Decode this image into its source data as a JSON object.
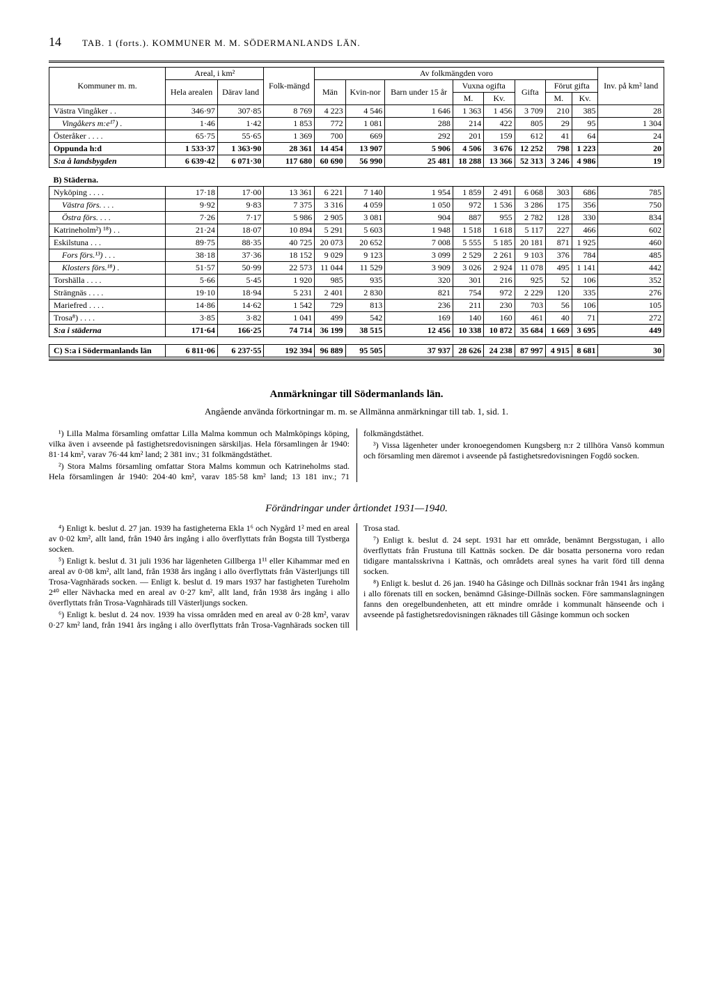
{
  "header": {
    "page_num": "14",
    "tab_title": "TAB. 1 (forts.). KOMMUNER M. M. SÖDERMANLANDS LÄN."
  },
  "table": {
    "col_headers": {
      "kommuner": "Kommuner m. m.",
      "areal": "Areal, i km²",
      "hela": "Hela arealen",
      "darav": "Därav land",
      "folk": "Folk-mängd",
      "av_folk": "Av folkmängden voro",
      "inv": "Inv. på km² land",
      "man": "Män",
      "kvin": "Kvin-nor",
      "barn": "Barn under 15 år",
      "vuxna": "Vuxna ogifta",
      "m": "M.",
      "kv": "Kv.",
      "gifta": "Gifta",
      "forut": "Förut gifta"
    },
    "rows": [
      {
        "label": "Västra Vingåker . .",
        "cls": "",
        "v": [
          "346·97",
          "307·85",
          "8 769",
          "4 223",
          "4 546",
          "1 646",
          "1 363",
          "1 456",
          "3 709",
          "210",
          "385",
          "28"
        ]
      },
      {
        "label": "Vingåkers m:e¹⁷) .",
        "cls": "sublabel",
        "v": [
          "1·46",
          "1·42",
          "1 853",
          "772",
          "1 081",
          "288",
          "214",
          "422",
          "805",
          "29",
          "95",
          "1 304"
        ]
      },
      {
        "label": "Österåker . . . .",
        "cls": "",
        "v": [
          "65·75",
          "55·65",
          "1 369",
          "700",
          "669",
          "292",
          "201",
          "159",
          "612",
          "41",
          "64",
          "24"
        ]
      },
      {
        "label": "Oppunda h:d",
        "cls": "bold",
        "v": [
          "1 533·37",
          "1 363·90",
          "28 361",
          "14 454",
          "13 907",
          "5 906",
          "4 506",
          "3 676",
          "12 252",
          "798",
          "1 223",
          "20"
        ]
      },
      {
        "label": "S:a å landsbygden",
        "cls": "bold italic",
        "v": [
          "6 639·42",
          "6 071·30",
          "117 680",
          "60 690",
          "56 990",
          "25 481",
          "18 288",
          "13 366",
          "52 313",
          "3 246",
          "4 986",
          "19"
        ]
      }
    ],
    "section_b": "B) Städerna.",
    "rows_b": [
      {
        "label": "Nyköping . . . .",
        "cls": "",
        "v": [
          "17·18",
          "17·00",
          "13 361",
          "6 221",
          "7 140",
          "1 954",
          "1 859",
          "2 491",
          "6 068",
          "303",
          "686",
          "785"
        ]
      },
      {
        "label": "Västra förs. . . .",
        "cls": "sublabel",
        "v": [
          "9·92",
          "9·83",
          "7 375",
          "3 316",
          "4 059",
          "1 050",
          "972",
          "1 536",
          "3 286",
          "175",
          "356",
          "750"
        ]
      },
      {
        "label": "Östra förs. . . .",
        "cls": "sublabel",
        "v": [
          "7·26",
          "7·17",
          "5 986",
          "2 905",
          "3 081",
          "904",
          "887",
          "955",
          "2 782",
          "128",
          "330",
          "834"
        ]
      },
      {
        "label": "Katrineholm²) ¹⁸) . .",
        "cls": "",
        "v": [
          "21·24",
          "18·07",
          "10 894",
          "5 291",
          "5 603",
          "1 948",
          "1 518",
          "1 618",
          "5 117",
          "227",
          "466",
          "602"
        ]
      },
      {
        "label": "Eskilstuna . . .",
        "cls": "",
        "v": [
          "89·75",
          "88·35",
          "40 725",
          "20 073",
          "20 652",
          "7 008",
          "5 555",
          "5 185",
          "20 181",
          "871",
          "1 925",
          "460"
        ]
      },
      {
        "label": "Fors förs.¹³) . . .",
        "cls": "sublabel",
        "v": [
          "38·18",
          "37·36",
          "18 152",
          "9 029",
          "9 123",
          "3 099",
          "2 529",
          "2 261",
          "9 103",
          "376",
          "784",
          "485"
        ]
      },
      {
        "label": "Klosters förs.¹⁸) .",
        "cls": "sublabel",
        "v": [
          "51·57",
          "50·99",
          "22 573",
          "11 044",
          "11 529",
          "3 909",
          "3 026",
          "2 924",
          "11 078",
          "495",
          "1 141",
          "442"
        ]
      },
      {
        "label": "Torshälla . . . .",
        "cls": "",
        "v": [
          "5·66",
          "5·45",
          "1 920",
          "985",
          "935",
          "320",
          "301",
          "216",
          "925",
          "52",
          "106",
          "352"
        ]
      },
      {
        "label": "Strängnäs . . . .",
        "cls": "",
        "v": [
          "19·10",
          "18·94",
          "5 231",
          "2 401",
          "2 830",
          "821",
          "754",
          "972",
          "2 229",
          "120",
          "335",
          "276"
        ]
      },
      {
        "label": "Mariefred . . . .",
        "cls": "",
        "v": [
          "14·86",
          "14·62",
          "1 542",
          "729",
          "813",
          "236",
          "211",
          "230",
          "703",
          "56",
          "106",
          "105"
        ]
      },
      {
        "label": "Trosa⁸) . . . .",
        "cls": "",
        "v": [
          "3·85",
          "3·82",
          "1 041",
          "499",
          "542",
          "169",
          "140",
          "160",
          "461",
          "40",
          "71",
          "272"
        ]
      },
      {
        "label": "S:a i städerna",
        "cls": "bold italic",
        "v": [
          "171·64",
          "166·25",
          "74 714",
          "36 199",
          "38 515",
          "12 456",
          "10 338",
          "10 872",
          "35 684",
          "1 669",
          "3 695",
          "449"
        ]
      }
    ],
    "section_c": "C) S:a i Södermanlands län",
    "row_c": {
      "v": [
        "6 811·06",
        "6 237·55",
        "192 394",
        "96 889",
        "95 505",
        "37 937",
        "28 626",
        "24 238",
        "87 997",
        "4 915",
        "8 681",
        "30"
      ]
    }
  },
  "notes": {
    "title": "Anmärkningar till Södermanlands län.",
    "subtitle": "Angående använda förkortningar m. m. se Allmänna anmärkningar till tab. 1, sid. 1.",
    "p1": "¹) Lilla Malma församling omfattar Lilla Malma kommun och Malmköpings köping, vilka även i avseende på fastighetsredovisningen särskiljas. Hela församlingen år 1940: 81·14 km², varav 76·44 km² land; 2 381 inv.; 31 folkmängdstäthet.",
    "p2": "²) Stora Malms församling omfattar Stora Malms kommun och Katrineholms stad. Hela församlingen år 1940: 204·40 km², varav 185·58 km² land; 13 181 inv.; 71 folkmängdstäthet.",
    "p3": "³) Vissa lägenheter under kronoegendomen Kungsberg n:r 2 tillhöra Vansö kommun och församling men däremot i avseende på fastighetsredovisningen Fogdö socken."
  },
  "changes": {
    "title": "Förändringar under årtiondet 1931—1940.",
    "p4": "⁴) Enligt k. beslut d. 27 jan. 1939 ha fastigheterna Ekla 1⁶ och Nygård 1² med en areal av 0·02 km², allt land, från 1940 års ingång i allo överflyttats från Bogsta till Tystberga socken.",
    "p5": "⁵) Enligt k. beslut d. 31 juli 1936 har lägenheten Gillberga 1¹¹ eller Kihammar med en areal av 0·08 km², allt land, från 1938 års ingång i allo överflyttats från Västerljungs till Trosa-Vagnhärads socken. — Enligt k. beslut d. 19 mars 1937 har fastigheten Tureholm 2⁴⁰ eller Nävhacka med en areal av 0·27 km², allt land, från 1938 års ingång i allo överflyttats från Trosa-Vagnhärads till Västerljungs socken.",
    "p6": "⁶) Enligt k. beslut d. 24 nov. 1939 ha vissa områden med en areal av 0·28 km², varav 0·27 km² land, från 1941 års ingång i allo överflyttats från Trosa-Vagnhärads socken till Trosa stad.",
    "p7": "⁷) Enligt k. beslut d. 24 sept. 1931 har ett område, benämnt Bergsstugan, i allo överflyttats från Frustuna till Kattnäs socken. De där bosatta personerna voro redan tidigare mantalsskrivna i Kattnäs, och områdets areal synes ha varit förd till denna socken.",
    "p8": "⁸) Enligt k. beslut d. 26 jan. 1940 ha Gåsinge och Dillnäs socknar från 1941 års ingång i allo förenats till en socken, benämnd Gåsinge-Dillnäs socken. Före sammanslagningen fanns den oregelbundenheten, att ett mindre område i kommunalt hänseende och i avseende på fastighetsredovisningen räknades till Gåsinge kommun och socken"
  }
}
